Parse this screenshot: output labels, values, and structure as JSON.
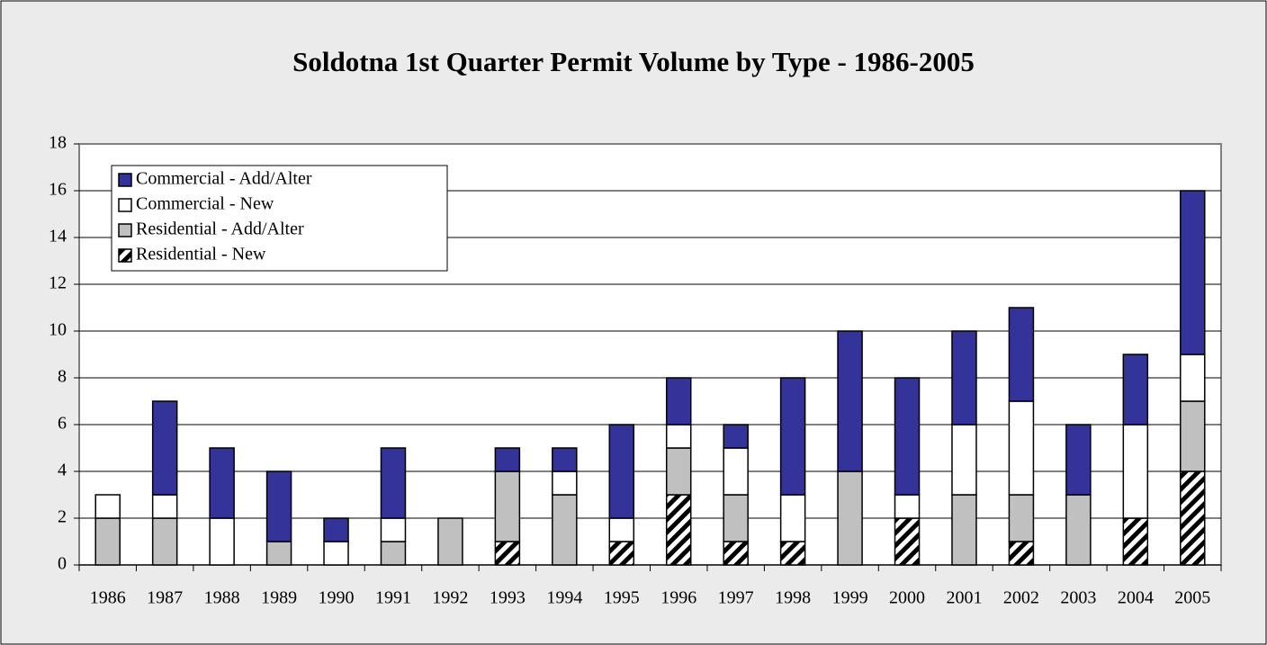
{
  "chart_data": {
    "type": "stacked_bar",
    "title": "Soldotna 1st Quarter Permit Volume by Type - 1986-2005",
    "categories": [
      "1986",
      "1987",
      "1988",
      "1989",
      "1990",
      "1991",
      "1992",
      "1993",
      "1994",
      "1995",
      "1996",
      "1997",
      "1998",
      "1999",
      "2000",
      "2001",
      "2002",
      "2003",
      "2004",
      "2005"
    ],
    "series": [
      {
        "name": "Residential - New",
        "color": "#ffffff",
        "pattern": "diagonal-hatch",
        "values": [
          0,
          0,
          0,
          0,
          0,
          0,
          0,
          1,
          0,
          1,
          3,
          1,
          1,
          0,
          2,
          0,
          1,
          0,
          2,
          4
        ]
      },
      {
        "name": "Residential - Add/Alter",
        "color": "#c0c0c0",
        "values": [
          2,
          2,
          0,
          1,
          0,
          1,
          2,
          3,
          3,
          0,
          2,
          2,
          0,
          4,
          0,
          3,
          2,
          3,
          0,
          3
        ]
      },
      {
        "name": "Commercial - New",
        "color": "#ffffff",
        "values": [
          1,
          1,
          2,
          0,
          1,
          1,
          0,
          0,
          1,
          1,
          1,
          2,
          2,
          0,
          1,
          3,
          4,
          0,
          4,
          2
        ]
      },
      {
        "name": "Commercial - Add/Alter",
        "color": "#333399",
        "values": [
          0,
          4,
          3,
          3,
          1,
          3,
          0,
          1,
          1,
          4,
          2,
          1,
          5,
          6,
          5,
          4,
          4,
          3,
          3,
          7
        ]
      }
    ],
    "ylim": [
      0,
      18
    ],
    "yticks": [
      0,
      2,
      4,
      6,
      8,
      10,
      12,
      14,
      16,
      18
    ],
    "grid": true,
    "legend": "upper left"
  }
}
